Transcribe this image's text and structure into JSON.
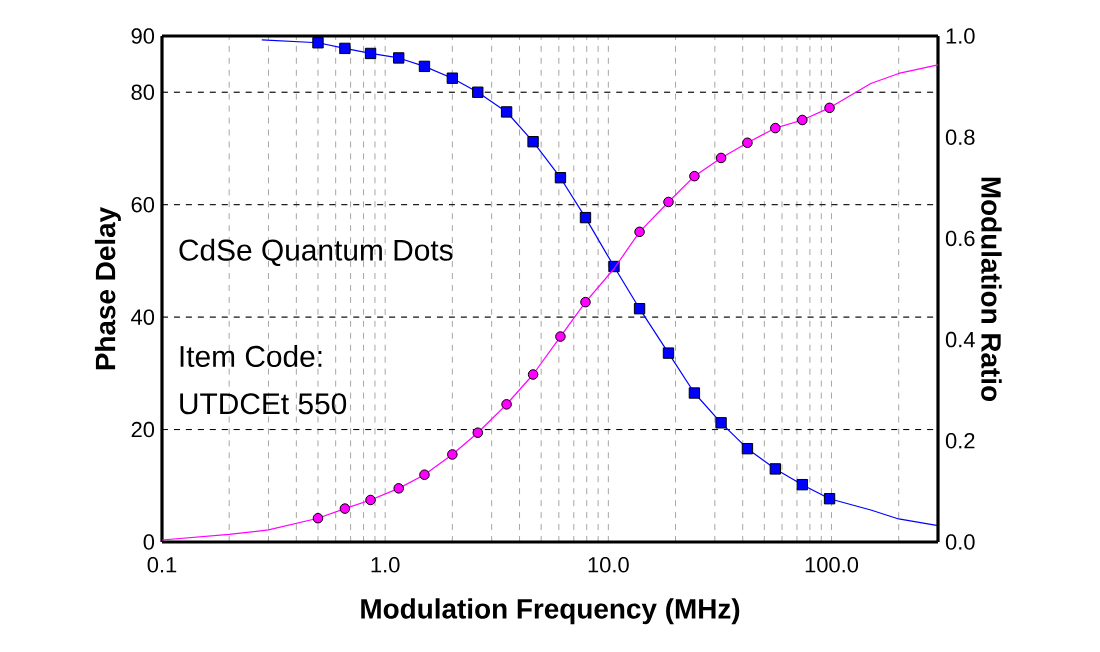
{
  "chart_data": {
    "type": "line",
    "xlabel": "Modulation Frequency (MHz)",
    "ylabel": "Phase Delay",
    "y2label": "Modulation Ratio",
    "log": "x",
    "grid": true,
    "xlim": [
      0.1,
      300
    ],
    "xticks": [
      {
        "value": 0.1,
        "label": "0.1"
      },
      {
        "value": 1,
        "label": "1.0"
      },
      {
        "value": 10,
        "label": "10.0"
      },
      {
        "value": 100,
        "label": "100.0"
      }
    ],
    "ylim": [
      0,
      90
    ],
    "yticks": [
      0,
      20,
      40,
      60,
      80,
      90
    ],
    "y2lim": [
      0,
      1
    ],
    "y2ticks": [
      {
        "value": 0,
        "label": "0.0"
      },
      {
        "value": 0.2,
        "label": "0.2"
      },
      {
        "value": 0.4,
        "label": "0.4"
      },
      {
        "value": 0.6,
        "label": "0.6"
      },
      {
        "value": 0.8,
        "label": "0.8"
      },
      {
        "value": 1,
        "label": "1.0"
      }
    ],
    "annotations": [
      "CdSe Quantum Dots",
      "Item Code:",
      "UTDCEt 550"
    ],
    "series": [
      {
        "marker": "none",
        "color": "#0000ff",
        "x": [
          0.28,
          0.5,
          0.66,
          0.86,
          1.15,
          1.5,
          2.0,
          2.6,
          3.5,
          4.6,
          6.1,
          7.9,
          10.6,
          13.8,
          18.6,
          24.3,
          32,
          42,
          56,
          74,
          98,
          150,
          200,
          300
        ],
        "values": [
          89.3,
          88.8,
          87.8,
          86.9,
          86.1,
          84.6,
          82.5,
          80.0,
          76.5,
          71.2,
          64.8,
          57.7,
          49.0,
          41.5,
          33.6,
          26.5,
          21.2,
          16.6,
          13.0,
          10.2,
          7.7,
          5.7,
          4.1,
          2.9
        ]
      },
      {
        "marker": "none",
        "color": "#ff00ff",
        "axis": "y2",
        "x": [
          0.1,
          0.2,
          0.3,
          0.5,
          0.66,
          0.86,
          1.15,
          1.5,
          2.0,
          2.6,
          3.5,
          4.6,
          6.1,
          7.9,
          10.6,
          13.8,
          18.6,
          24.3,
          32,
          42,
          56,
          74,
          98,
          150,
          200,
          300
        ],
        "values": [
          0.004,
          0.015,
          0.024,
          0.047,
          0.066,
          0.083,
          0.106,
          0.133,
          0.173,
          0.216,
          0.272,
          0.331,
          0.406,
          0.474,
          0.54,
          0.613,
          0.672,
          0.723,
          0.759,
          0.789,
          0.818,
          0.834,
          0.858,
          0.906,
          0.926,
          0.943
        ]
      },
      {
        "type": "scatter",
        "marker": "square",
        "color": "#0000ff",
        "x": [
          0.5,
          0.66,
          0.86,
          1.15,
          1.5,
          2.0,
          2.6,
          3.5,
          4.6,
          6.1,
          7.9,
          10.6,
          13.8,
          18.6,
          24.3,
          32,
          42,
          56,
          74,
          98
        ],
        "values": [
          88.8,
          87.8,
          86.9,
          86.1,
          84.6,
          82.5,
          80.0,
          76.5,
          71.2,
          64.8,
          57.7,
          49.0,
          41.5,
          33.6,
          26.5,
          21.2,
          16.6,
          13.0,
          10.2,
          7.7
        ]
      },
      {
        "type": "scatter",
        "marker": "circle",
        "color": "#ff00ff",
        "axis": "y2",
        "x": [
          0.5,
          0.66,
          0.86,
          1.15,
          1.5,
          2.0,
          2.6,
          3.5,
          4.6,
          6.1,
          7.9,
          10.6,
          13.8,
          18.6,
          24.3,
          32,
          42,
          56,
          74,
          98
        ],
        "values": [
          0.047,
          0.066,
          0.083,
          0.106,
          0.133,
          0.173,
          0.216,
          0.272,
          0.331,
          0.406,
          0.474,
          null,
          0.613,
          0.672,
          0.723,
          0.759,
          0.789,
          0.818,
          0.834,
          0.858
        ]
      }
    ]
  }
}
